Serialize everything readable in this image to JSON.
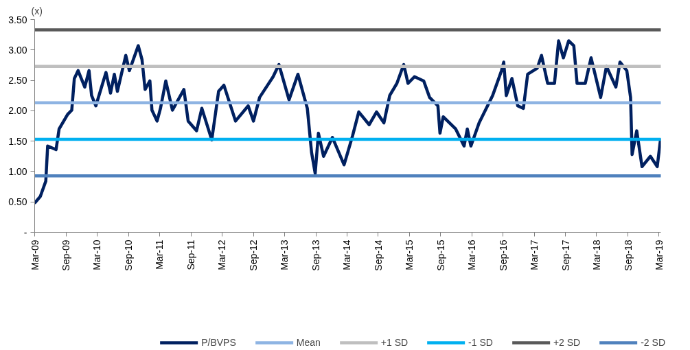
{
  "chart_data": {
    "type": "line",
    "ylabel": "(x)",
    "xlim": [
      "2009-03-01",
      "2019-03-12"
    ],
    "xticks": [
      {
        "value": "2009-03-01",
        "label": "Mar-09"
      },
      {
        "value": "2009-09-01",
        "label": "Sep-09"
      },
      {
        "value": "2010-03-01",
        "label": "Mar-10"
      },
      {
        "value": "2010-09-01",
        "label": "Sep-10"
      },
      {
        "value": "2011-03-01",
        "label": "Mar-11"
      },
      {
        "value": "2011-09-01",
        "label": "Sep-11"
      },
      {
        "value": "2012-03-01",
        "label": "Mar-12"
      },
      {
        "value": "2012-09-01",
        "label": "Sep-12"
      },
      {
        "value": "2013-03-01",
        "label": "Mar-13"
      },
      {
        "value": "2013-09-01",
        "label": "Sep-13"
      },
      {
        "value": "2014-03-01",
        "label": "Mar-14"
      },
      {
        "value": "2014-09-01",
        "label": "Sep-14"
      },
      {
        "value": "2015-03-01",
        "label": "Mar-15"
      },
      {
        "value": "2015-09-01",
        "label": "Sep-15"
      },
      {
        "value": "2016-03-01",
        "label": "Mar-16"
      },
      {
        "value": "2016-09-01",
        "label": "Sep-16"
      },
      {
        "value": "2017-03-01",
        "label": "Mar-17"
      },
      {
        "value": "2017-09-01",
        "label": "Sep-17"
      },
      {
        "value": "2018-03-01",
        "label": "Mar-18"
      },
      {
        "value": "2018-09-01",
        "label": "Sep-18"
      },
      {
        "value": "2019-03-01",
        "label": "Mar-19"
      }
    ],
    "ylim": [
      0,
      3.5
    ],
    "yticks": [
      {
        "value": 0,
        "label": "-"
      },
      {
        "value": 0.5,
        "label": "0.50"
      },
      {
        "value": 1,
        "label": "1.00"
      },
      {
        "value": 1.5,
        "label": "1.50"
      },
      {
        "value": 2,
        "label": "2.00"
      },
      {
        "value": 2.5,
        "label": "2.50"
      },
      {
        "value": 3,
        "label": "3.00"
      },
      {
        "value": 3.5,
        "label": "3.50"
      }
    ],
    "grid": false,
    "legend": "bottom",
    "marker": "none",
    "line_style": "solid",
    "series": [
      {
        "name": "P/BVPS",
        "color": "#002060",
        "x": [
          "2009-03-04",
          "2009-04-03",
          "2009-05-05",
          "2009-05-16",
          "2009-07-04",
          "2009-07-22",
          "2009-09-10",
          "2009-10-04",
          "2009-10-19",
          "2009-11-10",
          "2009-12-19",
          "2010-01-13",
          "2010-01-28",
          "2010-02-22",
          "2010-04-22",
          "2010-05-19",
          "2010-06-10",
          "2010-06-28",
          "2010-08-16",
          "2010-09-06",
          "2010-10-28",
          "2010-11-19",
          "2010-12-07",
          "2011-01-04",
          "2011-01-16",
          "2011-02-15",
          "2011-03-07",
          "2011-04-07",
          "2011-05-16",
          "2011-07-22",
          "2011-08-16",
          "2011-10-04",
          "2011-11-04",
          "2012-01-01",
          "2012-02-10",
          "2012-03-12",
          "2012-05-19",
          "2012-08-01",
          "2012-09-01",
          "2012-10-07",
          "2012-12-25",
          "2013-01-28",
          "2013-03-28",
          "2013-05-19",
          "2013-07-13",
          "2013-08-07",
          "2013-08-28",
          "2013-09-16",
          "2013-10-16",
          "2013-12-07",
          "2014-02-13",
          "2014-04-04",
          "2014-05-10",
          "2014-07-10",
          "2014-08-22",
          "2014-10-04",
          "2014-11-07",
          "2014-12-19",
          "2015-01-28",
          "2015-02-22",
          "2015-04-01",
          "2015-05-25",
          "2015-06-28",
          "2015-08-16",
          "2015-08-28",
          "2015-09-16",
          "2015-11-28",
          "2016-01-16",
          "2016-02-04",
          "2016-02-25",
          "2016-04-13",
          "2016-07-01",
          "2016-08-22",
          "2016-09-04",
          "2016-09-19",
          "2016-10-22",
          "2016-11-25",
          "2016-12-28",
          "2017-01-22",
          "2017-03-19",
          "2017-04-13",
          "2017-05-19",
          "2017-06-28",
          "2017-07-22",
          "2017-08-19",
          "2017-09-19",
          "2017-10-19",
          "2017-11-07",
          "2017-12-25",
          "2018-01-28",
          "2018-03-25",
          "2018-04-28",
          "2018-06-22",
          "2018-07-16",
          "2018-08-25",
          "2018-09-16",
          "2018-09-25",
          "2018-10-22",
          "2018-11-22",
          "2019-01-10",
          "2019-02-19",
          "2019-03-10"
        ],
        "values": [
          0.49,
          0.59,
          0.84,
          1.42,
          1.36,
          1.7,
          1.94,
          2.01,
          2.53,
          2.66,
          2.39,
          2.66,
          2.25,
          2.08,
          2.63,
          2.29,
          2.6,
          2.32,
          2.91,
          2.66,
          3.07,
          2.84,
          2.35,
          2.49,
          2.01,
          1.83,
          2.04,
          2.49,
          2.01,
          2.35,
          1.83,
          1.67,
          2.04,
          1.52,
          2.32,
          2.42,
          1.83,
          2.08,
          1.83,
          2.22,
          2.56,
          2.76,
          2.18,
          2.6,
          2.04,
          1.31,
          0.97,
          1.63,
          1.25,
          1.56,
          1.11,
          1.59,
          1.98,
          1.77,
          1.98,
          1.8,
          2.25,
          2.45,
          2.76,
          2.45,
          2.56,
          2.49,
          2.22,
          2.08,
          1.63,
          1.9,
          1.7,
          1.42,
          1.7,
          1.42,
          1.8,
          2.25,
          2.66,
          2.8,
          2.25,
          2.53,
          2.08,
          2.04,
          2.6,
          2.7,
          2.91,
          2.45,
          2.45,
          3.15,
          2.87,
          3.15,
          3.07,
          2.45,
          2.45,
          2.87,
          2.22,
          2.73,
          2.39,
          2.8,
          2.66,
          2.22,
          1.28,
          1.67,
          1.08,
          1.25,
          1.08,
          1.52
        ]
      },
      {
        "name": "Mean",
        "color": "#8eb4e3",
        "x": [
          "2009-03-01",
          "2019-03-10"
        ],
        "values": [
          2.13,
          2.13
        ]
      },
      {
        "name": "+1 SD",
        "color": "#bfbfbf",
        "x": [
          "2009-03-01",
          "2019-03-10"
        ],
        "values": [
          2.73,
          2.73
        ]
      },
      {
        "name": "-1 SD",
        "color": "#00b0f0",
        "x": [
          "2009-03-01",
          "2019-03-10"
        ],
        "values": [
          1.53,
          1.53
        ]
      },
      {
        "name": "+2 SD",
        "color": "#595959",
        "x": [
          "2009-03-01",
          "2019-03-10"
        ],
        "values": [
          3.33,
          3.33
        ]
      },
      {
        "name": "-2 SD",
        "color": "#4f81bd",
        "x": [
          "2009-03-01",
          "2019-03-10"
        ],
        "values": [
          0.93,
          0.93
        ]
      }
    ]
  }
}
